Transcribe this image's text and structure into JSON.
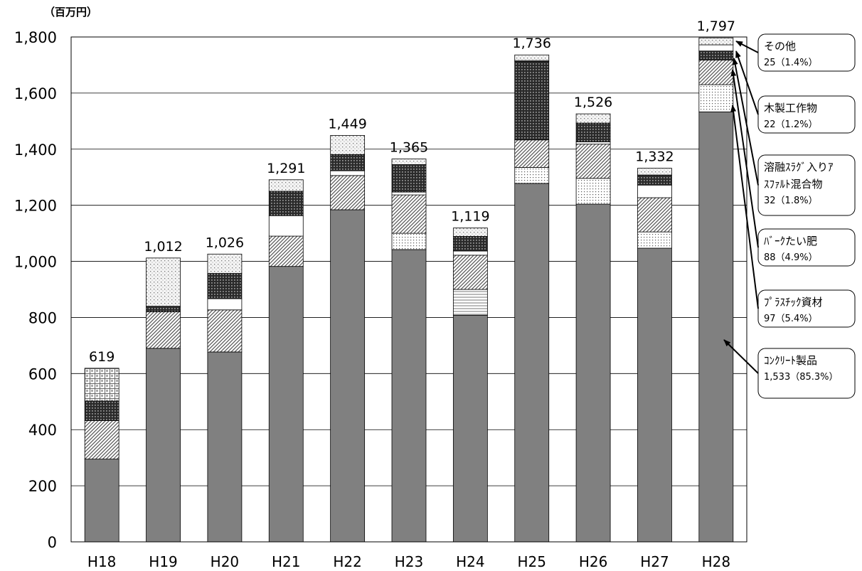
{
  "chart_data": {
    "type": "bar",
    "stacked": true,
    "unit_label": "（百万円）",
    "ylim": [
      0,
      1800
    ],
    "yticks": [
      0,
      200,
      400,
      600,
      800,
      1000,
      1200,
      1400,
      1600,
      1800
    ],
    "ytick_labels": [
      "0",
      "200",
      "400",
      "600",
      "800",
      "1,000",
      "1,200",
      "1,400",
      "1,600",
      "1,800"
    ],
    "grid": true,
    "categories": [
      "H18",
      "H19",
      "H20",
      "H21",
      "H22",
      "H23",
      "H24",
      "H25",
      "H26",
      "H27",
      "H28"
    ],
    "totals": [
      619,
      1012,
      1026,
      1291,
      1449,
      1365,
      1119,
      1736,
      1526,
      1332,
      1797
    ],
    "total_labels": [
      "619",
      "1,012",
      "1,026",
      "1,291",
      "1,449",
      "1,365",
      "1,119",
      "1,736",
      "1,526",
      "1,332",
      "1,797"
    ],
    "series": [
      {
        "name": "コンクリート製品",
        "pattern": "solid",
        "values": [
          295,
          690,
          677,
          982,
          1184,
          1042,
          808,
          1278,
          1204,
          1047,
          1533
        ]
      },
      {
        "name": "プラスチック資材",
        "pattern": "dots",
        "values": [
          0,
          0,
          0,
          0,
          0,
          58,
          0,
          57,
          92,
          58,
          97
        ]
      },
      {
        "name": "hline-component",
        "pattern": "hlines",
        "values": [
          0,
          0,
          0,
          0,
          0,
          0,
          92,
          0,
          0,
          0,
          0
        ]
      },
      {
        "name": "バークたい肥",
        "pattern": "diag",
        "values": [
          137,
          130,
          150,
          108,
          122,
          137,
          122,
          98,
          122,
          122,
          88
        ]
      },
      {
        "name": "white-component",
        "pattern": "white",
        "values": [
          0,
          0,
          40,
          73,
          17,
          10,
          15,
          0,
          8,
          45,
          0
        ]
      },
      {
        "name": "溶融スラグ入りアスファルト混合物",
        "pattern": "grid-dark",
        "values": [
          70,
          20,
          90,
          87,
          58,
          98,
          52,
          280,
          67,
          36,
          32
        ]
      },
      {
        "name": "木製工作物",
        "pattern": "white",
        "values": [
          0,
          0,
          0,
          0,
          0,
          0,
          0,
          3,
          0,
          0,
          22
        ]
      },
      {
        "name": "その他",
        "pattern": "light-dots",
        "values": [
          0,
          172,
          69,
          41,
          68,
          20,
          30,
          20,
          33,
          24,
          25
        ]
      },
      {
        "name": "squares-component",
        "pattern": "squares",
        "values": [
          117,
          0,
          0,
          0,
          0,
          0,
          0,
          0,
          0,
          0,
          0
        ]
      }
    ],
    "callouts": [
      {
        "title": "その他",
        "value": "25（1.4%）"
      },
      {
        "title": "木製工作物",
        "value": "22（1.2%）"
      },
      {
        "title": "溶融ｽﾗｸﾞ入りｱ",
        "title2": "ｽﾌｧﾙﾄ混合物",
        "value": "32（1.8%）"
      },
      {
        "title": "ﾊﾞｰｸたい肥",
        "value": "88（4.9%）"
      },
      {
        "title": "ﾌﾟﾗｽﾁｯｸ資材",
        "value": "97（5.4%）"
      },
      {
        "title": "ｺﾝｸﾘｰﾄ製品",
        "value": "1,533（85.3%）"
      }
    ]
  }
}
